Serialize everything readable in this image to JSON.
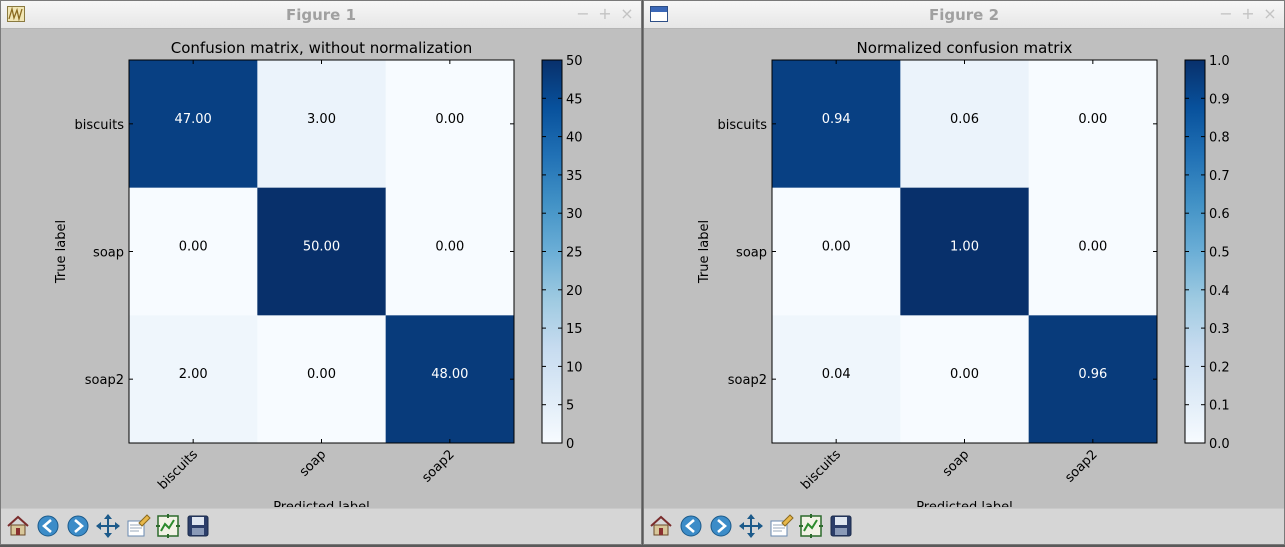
{
  "windows": [
    {
      "title": "Figure 1",
      "icon": "matplotlib-plot-icon",
      "controls": {
        "minimize": "−",
        "maximize": "+",
        "close": "×"
      },
      "chart_data": {
        "type": "heatmap",
        "title": "Confusion matrix, without normalization",
        "xlabel": "Predicted label",
        "ylabel": "True label",
        "x_categories": [
          "biscuits",
          "soap",
          "soap2"
        ],
        "y_categories": [
          "biscuits",
          "soap",
          "soap2"
        ],
        "values": [
          [
            47,
            3,
            0
          ],
          [
            0,
            50,
            0
          ],
          [
            2,
            0,
            48
          ]
        ],
        "cell_labels": [
          [
            "47.00",
            "3.00",
            "0.00"
          ],
          [
            "0.00",
            "50.00",
            "0.00"
          ],
          [
            "2.00",
            "0.00",
            "48.00"
          ]
        ],
        "colormap": "Blues",
        "colorbar": {
          "min": 0,
          "max": 50,
          "ticks": [
            "0",
            "5",
            "10",
            "15",
            "20",
            "25",
            "30",
            "35",
            "40",
            "45",
            "50"
          ]
        }
      }
    },
    {
      "title": "Figure 2",
      "icon": "window-icon",
      "controls": {
        "minimize": "−",
        "maximize": "+",
        "close": "×"
      },
      "chart_data": {
        "type": "heatmap",
        "title": "Normalized confusion matrix",
        "xlabel": "Predicted label",
        "ylabel": "True label",
        "x_categories": [
          "biscuits",
          "soap",
          "soap2"
        ],
        "y_categories": [
          "biscuits",
          "soap",
          "soap2"
        ],
        "values": [
          [
            0.94,
            0.06,
            0.0
          ],
          [
            0.0,
            1.0,
            0.0
          ],
          [
            0.04,
            0.0,
            0.96
          ]
        ],
        "cell_labels": [
          [
            "0.94",
            "0.06",
            "0.00"
          ],
          [
            "0.00",
            "1.00",
            "0.00"
          ],
          [
            "0.04",
            "0.00",
            "0.96"
          ]
        ],
        "colormap": "Blues",
        "colorbar": {
          "min": 0,
          "max": 1,
          "ticks": [
            "0.0",
            "0.1",
            "0.2",
            "0.3",
            "0.4",
            "0.5",
            "0.6",
            "0.7",
            "0.8",
            "0.9",
            "1.0"
          ]
        }
      }
    }
  ],
  "toolbar": {
    "buttons": [
      "home-icon",
      "back-icon",
      "forward-icon",
      "pan-icon",
      "configure-subplots-icon",
      "edit-axes-icon",
      "save-icon"
    ]
  }
}
